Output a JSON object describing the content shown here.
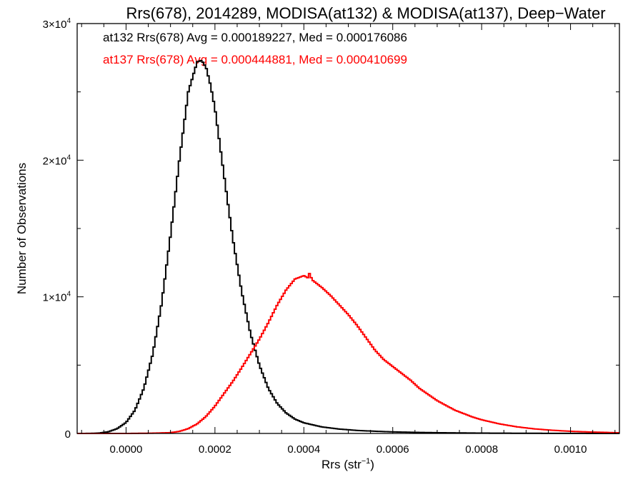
{
  "chart_data": {
    "type": "line",
    "title": "Rrs(678), 2014289, MODISA(at132) & MODISA(at137), Deep−Water",
    "xlabel": "Rrs (str",
    "xlabel_sup": "−1",
    "xlabel_end": ")",
    "ylabel": "Number of Observations",
    "xlim": [
      -0.00011,
      0.00111
    ],
    "ylim": [
      0,
      30000
    ],
    "x_ticks": [
      {
        "value": 0.0,
        "label": "0.0000"
      },
      {
        "value": 0.0002,
        "label": "0.0002"
      },
      {
        "value": 0.0004,
        "label": "0.0004"
      },
      {
        "value": 0.0006,
        "label": "0.0006"
      },
      {
        "value": 0.0008,
        "label": "0.0008"
      },
      {
        "value": 0.001,
        "label": "0.0010"
      }
    ],
    "y_ticks": [
      {
        "value": 0,
        "label": "0",
        "exp": ""
      },
      {
        "value": 10000,
        "label": "1×10",
        "exp": "4"
      },
      {
        "value": 20000,
        "label": "2×10",
        "exp": "4"
      },
      {
        "value": 30000,
        "label": "3×10",
        "exp": "4"
      }
    ],
    "series": [
      {
        "name": "at132",
        "color": "#000000",
        "annotation": "at132 Rrs(678) Avg = 0.000189227, Med = 0.000176086",
        "points": [
          [
            -0.00011,
            0
          ],
          [
            -8e-05,
            5
          ],
          [
            -6e-05,
            30
          ],
          [
            -4e-05,
            120
          ],
          [
            -2e-05,
            350
          ],
          [
            0.0,
            800
          ],
          [
            2e-05,
            1700
          ],
          [
            4e-05,
            3300
          ],
          [
            6e-05,
            5800
          ],
          [
            8e-05,
            9500
          ],
          [
            0.0001,
            14500
          ],
          [
            0.00012,
            20000
          ],
          [
            0.00014,
            25000
          ],
          [
            0.00016,
            27200
          ],
          [
            0.00017,
            27300
          ],
          [
            0.00018,
            26800
          ],
          [
            0.00019,
            25500
          ],
          [
            0.0002,
            23800
          ],
          [
            0.00022,
            19000
          ],
          [
            0.00024,
            14300
          ],
          [
            0.00026,
            10400
          ],
          [
            0.00028,
            7300
          ],
          [
            0.0003,
            5000
          ],
          [
            0.00032,
            3300
          ],
          [
            0.00034,
            2200
          ],
          [
            0.00036,
            1500
          ],
          [
            0.00038,
            1050
          ],
          [
            0.0004,
            780
          ],
          [
            0.00044,
            480
          ],
          [
            0.00048,
            320
          ],
          [
            0.00052,
            220
          ],
          [
            0.00056,
            160
          ],
          [
            0.0006,
            115
          ],
          [
            0.00065,
            80
          ],
          [
            0.0007,
            55
          ],
          [
            0.0008,
            25
          ],
          [
            0.0009,
            12
          ],
          [
            0.001,
            5
          ],
          [
            0.00111,
            0
          ]
        ]
      },
      {
        "name": "at137",
        "color": "#ff0000",
        "annotation": "at137 Rrs(678) Avg = 0.000444881, Med = 0.000410699",
        "points": [
          [
            -0.00011,
            0
          ],
          [
            0.0,
            0
          ],
          [
            6e-05,
            20
          ],
          [
            0.0001,
            60
          ],
          [
            0.00012,
            150
          ],
          [
            0.00014,
            350
          ],
          [
            0.00016,
            700
          ],
          [
            0.00018,
            1250
          ],
          [
            0.0002,
            2000
          ],
          [
            0.00022,
            2900
          ],
          [
            0.00024,
            3800
          ],
          [
            0.00026,
            4800
          ],
          [
            0.00028,
            5850
          ],
          [
            0.0003,
            6900
          ],
          [
            0.00032,
            8100
          ],
          [
            0.00034,
            9400
          ],
          [
            0.00036,
            10500
          ],
          [
            0.00038,
            11300
          ],
          [
            0.0004,
            11550
          ],
          [
            0.00042,
            11200
          ],
          [
            0.00044,
            10700
          ],
          [
            0.00046,
            10100
          ],
          [
            0.00048,
            9400
          ],
          [
            0.0005,
            8700
          ],
          [
            0.00052,
            7900
          ],
          [
            0.00054,
            7000
          ],
          [
            0.00056,
            6100
          ],
          [
            0.00058,
            5400
          ],
          [
            0.0006,
            4900
          ],
          [
            0.00062,
            4400
          ],
          [
            0.00064,
            3900
          ],
          [
            0.00066,
            3300
          ],
          [
            0.00068,
            2850
          ],
          [
            0.0007,
            2400
          ],
          [
            0.00072,
            2050
          ],
          [
            0.00074,
            1700
          ],
          [
            0.00076,
            1450
          ],
          [
            0.00078,
            1200
          ],
          [
            0.0008,
            1000
          ],
          [
            0.00084,
            700
          ],
          [
            0.00088,
            480
          ],
          [
            0.00092,
            330
          ],
          [
            0.00096,
            230
          ],
          [
            0.001,
            160
          ],
          [
            0.00104,
            110
          ],
          [
            0.00108,
            75
          ],
          [
            0.00111,
            50
          ]
        ],
        "spikes": [
          [
            0.000413,
            11700
          ],
          [
            0.000418,
            11400
          ],
          [
            0.000533,
            6500
          ],
          [
            0.000583,
            4600
          ],
          [
            0.000651,
            2450
          ],
          [
            0.000738,
            1300
          ],
          [
            0.000836,
            700
          ],
          [
            0.000886,
            470
          ]
        ]
      }
    ],
    "grid": false,
    "legend": "top-left annotations"
  }
}
